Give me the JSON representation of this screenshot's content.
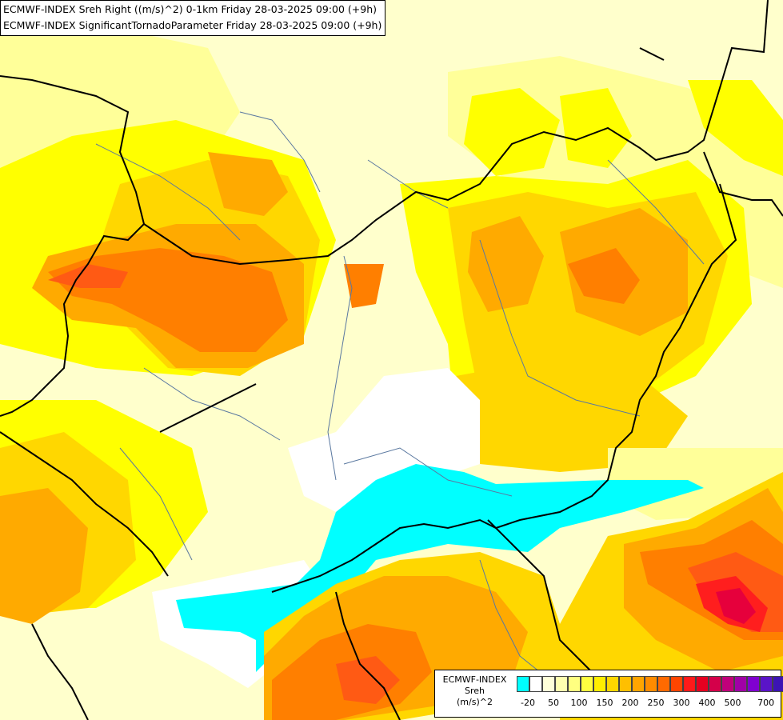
{
  "title": {
    "line1": "ECMWF-INDEX Sreh Right ((m/s)^2) 0-1km Friday 28-03-2025 09:00 (+9h)",
    "line2": "ECMWF-INDEX SignificantTornadoParameter Friday 28-03-2025 09:00 (+9h)"
  },
  "legend": {
    "line1": "ECMWF-INDEX",
    "line2": "Sreh",
    "line3": "(m/s)^2",
    "swatch_colors": [
      "#00ffff",
      "#ffffff",
      "#ffffd9",
      "#ffffb0",
      "#ffff80",
      "#ffff40",
      "#ffee00",
      "#ffd700",
      "#ffbf00",
      "#ffa500",
      "#ff8c00",
      "#ff6a00",
      "#ff4500",
      "#ff1a1a",
      "#e60020",
      "#d4004a",
      "#c0007a",
      "#a000a6",
      "#8000d0",
      "#5a14c8",
      "#3c14b4",
      "#00008c"
    ],
    "tick_labels": [
      "-20",
      "50",
      "100",
      "150",
      "200",
      "250",
      "300",
      "400",
      "500",
      "700"
    ]
  },
  "palette": {
    "cyan": "#00ffff",
    "white": "#ffffff",
    "pale_yellow": "#ffffcc",
    "light_yellow": "#ffff99",
    "yellow": "#ffff00",
    "gold": "#ffd700",
    "orange": "#ffaa00",
    "dark_orange": "#ff7f00",
    "red_orange": "#ff5a14",
    "red": "#ff1e1e",
    "crimson": "#e6003c",
    "border_color": "#000000",
    "river_color": "#5a78a0"
  }
}
